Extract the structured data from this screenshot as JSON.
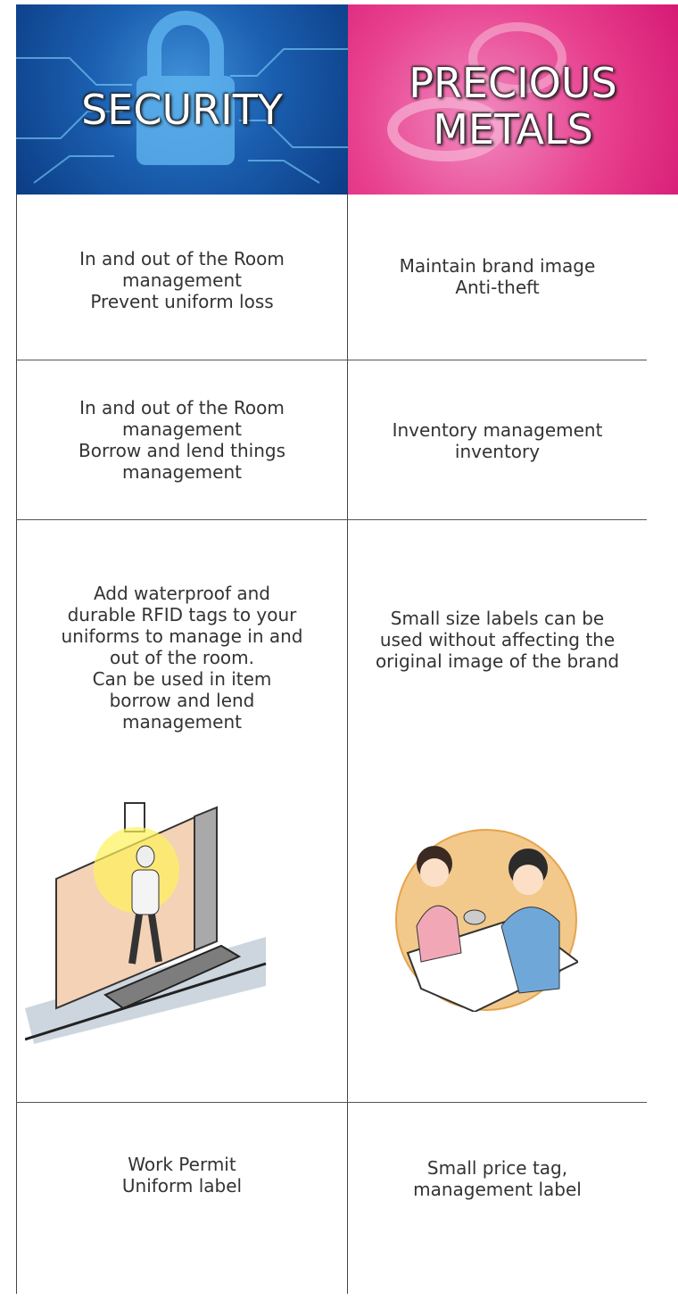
{
  "header": {
    "left": [
      "SECURITY"
    ],
    "right": [
      "PRECIOUS",
      "METALS"
    ]
  },
  "table": {
    "rows": [
      [
        [
          "In and out of the Room",
          "management",
          "Prevent uniform loss"
        ],
        [
          "Maintain brand image",
          "Anti-theft"
        ]
      ],
      [
        [
          "In and out of the Room",
          "management",
          "Borrow and lend  things",
          "management"
        ],
        [
          "Inventory management",
          "inventory"
        ]
      ],
      [
        [
          "Add waterproof and",
          "durable RFID tags to your",
          "uniforms to manage in and",
          "out of the room.",
          "Can be used in item",
          "borrow and lend",
          "management"
        ],
        [
          "Small size labels can be",
          "used without affecting the",
          "original image of the brand"
        ]
      ],
      [
        [
          "Work Permit",
          "Uniform label"
        ],
        [
          "Small price tag,",
          "management label"
        ]
      ]
    ]
  }
}
